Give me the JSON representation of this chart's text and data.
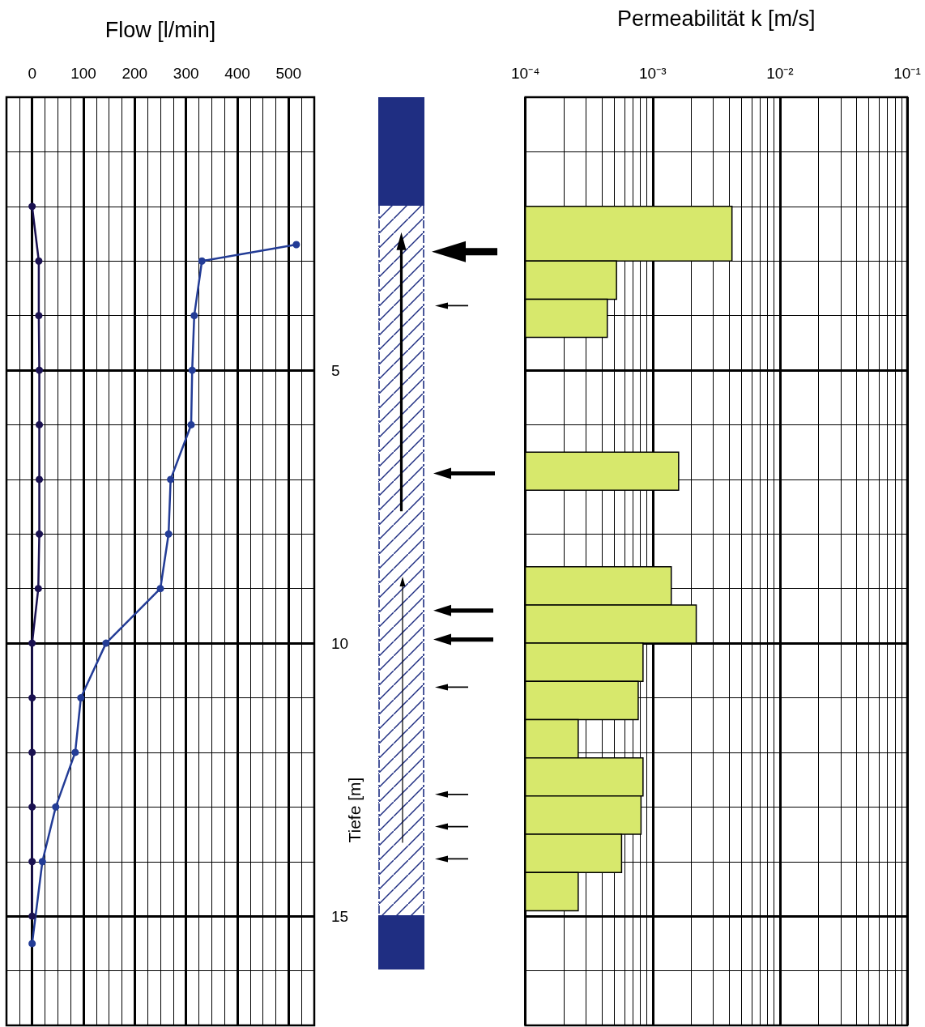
{
  "chart_data": [
    {
      "type": "line",
      "xlabel": "Flow [l/min]",
      "ylabel": "Tiefe [m]",
      "series": [
        {
          "color": "#1a1150",
          "x": [
            0,
            13,
            13,
            14,
            14,
            14,
            14,
            12,
            0,
            0,
            0,
            0,
            0,
            0
          ],
          "values": [
            2,
            3,
            4,
            5,
            6,
            7,
            8,
            9,
            10,
            11,
            12,
            13,
            14,
            15
          ]
        },
        {
          "color": "#233c96",
          "x": [
            515,
            331,
            316,
            312,
            310,
            270,
            266,
            250,
            144,
            95,
            84,
            46,
            20,
            0
          ],
          "values": [
            2.7,
            3,
            4,
            5,
            6,
            7,
            8,
            9,
            10,
            11,
            12,
            13,
            14,
            15.5
          ]
        }
      ],
      "xlim": [
        -50,
        550
      ],
      "xticks": [
        {
          "value": -50,
          "label": null
        },
        {
          "value": -25,
          "label": null
        },
        0,
        {
          "value": 25,
          "label": null
        },
        {
          "value": 50,
          "label": null
        },
        {
          "value": 75,
          "label": null
        },
        100,
        {
          "value": 125,
          "label": null
        },
        {
          "value": 150,
          "label": null
        },
        {
          "value": 175,
          "label": null
        },
        200,
        {
          "value": 225,
          "label": null
        },
        {
          "value": 250,
          "label": null
        },
        {
          "value": 275,
          "label": null
        },
        300,
        {
          "value": 325,
          "label": null
        },
        {
          "value": 350,
          "label": null
        },
        {
          "value": 375,
          "label": null
        },
        400,
        {
          "value": 425,
          "label": null
        },
        {
          "value": 450,
          "label": null
        },
        {
          "value": 475,
          "label": null
        },
        500,
        {
          "value": 525,
          "label": null
        },
        {
          "value": 550,
          "label": null
        }
      ],
      "ylim": [
        17,
        0
      ],
      "yticks": [
        {
          "value": 0,
          "label": null
        },
        {
          "value": 1,
          "label": null
        },
        {
          "value": 2,
          "label": null
        },
        {
          "value": 3,
          "label": null
        },
        {
          "value": 4,
          "label": null
        },
        5,
        {
          "value": 6,
          "label": null
        },
        {
          "value": 7,
          "label": null
        },
        {
          "value": 8,
          "label": null
        },
        {
          "value": 9,
          "label": null
        },
        10,
        {
          "value": 11,
          "label": null
        },
        {
          "value": 12,
          "label": null
        },
        {
          "value": 13,
          "label": null
        },
        {
          "value": 14,
          "label": null
        },
        15,
        {
          "value": 16,
          "label": null
        },
        {
          "value": 17,
          "label": null
        }
      ],
      "grid": true,
      "marker": "circle"
    },
    {
      "type": "histogram",
      "orientation": "horizontal",
      "xlabel": "Permeabilität k [m/s]",
      "bins": [
        2.0,
        3.0,
        3.7,
        4.4,
        6.5,
        7.2,
        8.6,
        9.3,
        10.0,
        10.7,
        11.4,
        12.1,
        12.8,
        13.5,
        14.2,
        14.9
      ],
      "values": [
        0.0042,
        0.00052,
        0.00044,
        null,
        0.0016,
        null,
        0.0014,
        0.0022,
        0.00084,
        0.00077,
        0.00026,
        0.00084,
        0.00081,
        0.00057,
        0.00026
      ],
      "color": "#d7e86c",
      "log": "x",
      "xlim": [
        0.0001,
        0.1
      ],
      "xticks": [
        {
          "value": 0.0001,
          "label": "10⁻⁴"
        },
        {
          "value": 0.0002,
          "label": null
        },
        {
          "value": 0.0003,
          "label": null
        },
        {
          "value": 0.0004,
          "label": null
        },
        {
          "value": 0.0005,
          "label": null
        },
        {
          "value": 0.0006,
          "label": null
        },
        {
          "value": 0.0007,
          "label": null
        },
        {
          "value": 0.0008,
          "label": null
        },
        {
          "value": 0.0009,
          "label": null
        },
        {
          "value": 0.001,
          "label": "10⁻³"
        },
        {
          "value": 0.002,
          "label": null
        },
        {
          "value": 0.003,
          "label": null
        },
        {
          "value": 0.004,
          "label": null
        },
        {
          "value": 0.005,
          "label": null
        },
        {
          "value": 0.006,
          "label": null
        },
        {
          "value": 0.007,
          "label": null
        },
        {
          "value": 0.008,
          "label": null
        },
        {
          "value": 0.009,
          "label": null
        },
        {
          "value": 0.01,
          "label": "10⁻²"
        },
        {
          "value": 0.02,
          "label": null
        },
        {
          "value": 0.03,
          "label": null
        },
        {
          "value": 0.04,
          "label": null
        },
        {
          "value": 0.05,
          "label": null
        },
        {
          "value": 0.06,
          "label": null
        },
        {
          "value": 0.07,
          "label": null
        },
        {
          "value": 0.08,
          "label": null
        },
        {
          "value": 0.09,
          "label": null
        },
        {
          "value": 0.1,
          "label": "10⁻¹"
        }
      ],
      "ylim": [
        17,
        0
      ],
      "yticks": [
        {
          "value": 0,
          "label": null
        },
        {
          "value": 1,
          "label": null
        },
        {
          "value": 2,
          "label": null
        },
        {
          "value": 3,
          "label": null
        },
        {
          "value": 4,
          "label": null
        },
        5,
        {
          "value": 6,
          "label": null
        },
        {
          "value": 7,
          "label": null
        },
        {
          "value": 8,
          "label": null
        },
        {
          "value": 9,
          "label": null
        },
        10,
        {
          "value": 11,
          "label": null
        },
        {
          "value": 12,
          "label": null
        },
        {
          "value": 13,
          "label": null
        },
        {
          "value": 14,
          "label": null
        },
        15,
        {
          "value": 16,
          "label": null
        },
        {
          "value": 17,
          "label": null
        }
      ],
      "tick_labels": "x",
      "grid": true
    }
  ]
}
